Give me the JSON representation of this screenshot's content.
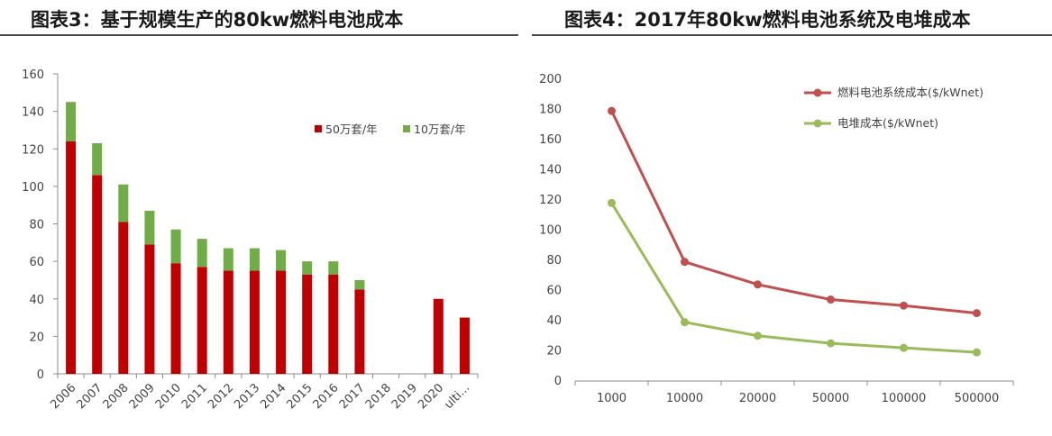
{
  "titles": {
    "left": "图表3：基于规模生产的80kw燃料电池成本",
    "right": "图表4：2017年80kw燃料电池系统及电堆成本"
  },
  "chart_data": [
    {
      "type": "bar",
      "stacked": true,
      "title": "图表3：基于规模生产的80kw燃料电池成本",
      "categories": [
        "2006",
        "2007",
        "2008",
        "2009",
        "2010",
        "2011",
        "2012",
        "2013",
        "2014",
        "2015",
        "2016",
        "2017",
        "2018",
        "2019",
        "2020",
        "ulti..."
      ],
      "series": [
        {
          "name": "50万套/年",
          "color": "#c00000",
          "values": [
            124,
            106,
            81,
            69,
            59,
            57,
            55,
            55,
            55,
            53,
            53,
            45,
            null,
            null,
            40,
            30
          ]
        },
        {
          "name": "10万套/年",
          "color": "#70ad47",
          "values": [
            21,
            17,
            20,
            18,
            18,
            15,
            12,
            12,
            11,
            7,
            7,
            5,
            null,
            null,
            null,
            null
          ]
        }
      ],
      "ylim": [
        0,
        160
      ],
      "yticks": [
        0,
        20,
        40,
        60,
        80,
        100,
        120,
        140,
        160
      ],
      "legend": "right",
      "grid": false
    },
    {
      "type": "line",
      "title": "图表4：2017年80kw燃料电池系统及电堆成本",
      "categories": [
        "1000",
        "10000",
        "20000",
        "50000",
        "100000",
        "500000"
      ],
      "series": [
        {
          "name": "燃料电池系统成本($/kWnet)",
          "color": "#c0504d",
          "values": [
            179,
            79,
            64,
            54,
            50,
            45
          ]
        },
        {
          "name": "电堆成本($/kWnet)",
          "color": "#9bbb59",
          "values": [
            118,
            39,
            30,
            25,
            22,
            19
          ]
        }
      ],
      "ylim": [
        0,
        200
      ],
      "yticks": [
        0,
        20,
        40,
        60,
        80,
        100,
        120,
        140,
        160,
        180,
        200
      ],
      "legend": "top-right",
      "grid": false
    }
  ]
}
